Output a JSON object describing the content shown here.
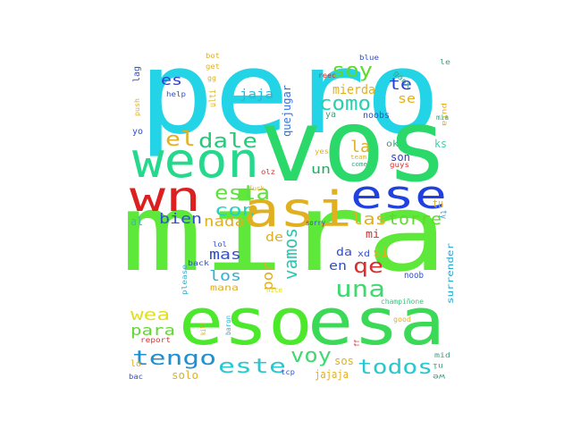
{
  "wordcloud": {
    "words": [
      {
        "text": "pero",
        "color": "#22d4e6"
      },
      {
        "text": "vos",
        "color": "#2bd96a"
      },
      {
        "text": "mira",
        "color": "#5ee83a"
      },
      {
        "text": "eso",
        "color": "#4ce82c"
      },
      {
        "text": "esa",
        "color": "#3ad956"
      },
      {
        "text": "weon",
        "color": "#24d98c"
      },
      {
        "text": "wn",
        "color": "#dc2020"
      },
      {
        "text": "asi",
        "color": "#e0b020"
      },
      {
        "text": "ese",
        "color": "#2040e0"
      },
      {
        "text": "esta",
        "color": "#60e040"
      },
      {
        "text": "con",
        "color": "#28d0c0"
      },
      {
        "text": "el",
        "color": "#e0b020"
      },
      {
        "text": "dale",
        "color": "#28c878"
      },
      {
        "text": "como",
        "color": "#28d0b0"
      },
      {
        "text": "soy",
        "color": "#60d830"
      },
      {
        "text": "mierda",
        "color": "#e0b020"
      },
      {
        "text": "quejugar",
        "color": "#3070e0"
      },
      {
        "text": "te",
        "color": "#2040d0"
      },
      {
        "text": "se",
        "color": "#e0b020"
      },
      {
        "text": "es",
        "color": "#3040d0"
      },
      {
        "text": "jaja",
        "color": "#28b8d8"
      },
      {
        "text": "la",
        "color": "#e0b020"
      },
      {
        "text": "bien",
        "color": "#3050d0"
      },
      {
        "text": "nada",
        "color": "#e0b020"
      },
      {
        "text": "las",
        "color": "#e0b020"
      },
      {
        "text": "torre",
        "color": "#60d830"
      },
      {
        "text": "una",
        "color": "#40d870"
      },
      {
        "text": "vamos",
        "color": "#28c8b0"
      },
      {
        "text": "qe",
        "color": "#d83030"
      },
      {
        "text": "mas",
        "color": "#3050d0"
      },
      {
        "text": "los",
        "color": "#30b0d0"
      },
      {
        "text": "por",
        "color": "#e0b020"
      },
      {
        "text": "de",
        "color": "#e0b020"
      },
      {
        "text": "en",
        "color": "#3050d0"
      },
      {
        "text": "si",
        "color": "#e0b020"
      },
      {
        "text": "un",
        "color": "#28a860"
      },
      {
        "text": "da",
        "color": "#3050d0"
      },
      {
        "text": "mi",
        "color": "#d83030"
      },
      {
        "text": "wea",
        "color": "#e0e020"
      },
      {
        "text": "para",
        "color": "#60d830"
      },
      {
        "text": "tengo",
        "color": "#2090d0"
      },
      {
        "text": "este",
        "color": "#28c8d0"
      },
      {
        "text": "voy",
        "color": "#40d870"
      },
      {
        "text": "todos",
        "color": "#28c8d0"
      },
      {
        "text": "sos",
        "color": "#e0b020"
      },
      {
        "text": "jajaja",
        "color": "#e0b020"
      },
      {
        "text": "solo",
        "color": "#e0b020"
      },
      {
        "text": "son",
        "color": "#3040d0"
      },
      {
        "text": "ks",
        "color": "#40d0b0"
      },
      {
        "text": "tu",
        "color": "#e0b020"
      },
      {
        "text": "ty",
        "color": "#28a8d0"
      },
      {
        "text": "al",
        "color": "#40b0d0"
      },
      {
        "text": "surrender",
        "color": "#28a8d0"
      },
      {
        "text": "please",
        "color": "#30b0d0"
      },
      {
        "text": "noob",
        "color": "#3050d0"
      },
      {
        "text": "champiñone",
        "color": "#40c080"
      },
      {
        "text": "good",
        "color": "#e0b020"
      },
      {
        "text": "report",
        "color": "#d83030"
      },
      {
        "text": "kill",
        "color": "#e0b020"
      },
      {
        "text": "nice",
        "color": "#e0e020"
      },
      {
        "text": "sorry",
        "color": "#3050d0"
      },
      {
        "text": "lol",
        "color": "#3050d0"
      },
      {
        "text": "back",
        "color": "#3050d0"
      },
      {
        "text": "mana",
        "color": "#e0b020"
      },
      {
        "text": "baron",
        "color": "#30b0d0"
      },
      {
        "text": "help",
        "color": "#3050d0"
      },
      {
        "text": "push",
        "color": "#e0b020"
      },
      {
        "text": "lag",
        "color": "#3050d0"
      },
      {
        "text": "yo",
        "color": "#3050d0"
      },
      {
        "text": "ulti",
        "color": "#e0b020"
      },
      {
        "text": "bot",
        "color": "#e0b020"
      },
      {
        "text": "get",
        "color": "#e0b020"
      },
      {
        "text": "gg",
        "color": "#e0b020"
      },
      {
        "text": "reec",
        "color": "#d83030"
      },
      {
        "text": "blue",
        "color": "#3050d0"
      },
      {
        "text": "le",
        "color": "#40a080"
      },
      {
        "text": "puta",
        "color": "#e0b020"
      },
      {
        "text": "gank",
        "color": "#40a080"
      },
      {
        "text": "mia",
        "color": "#40a080"
      },
      {
        "text": "noobs",
        "color": "#3050d0"
      },
      {
        "text": "ya",
        "color": "#40a080"
      },
      {
        "text": "ok",
        "color": "#40a080"
      },
      {
        "text": "yes",
        "color": "#e0b020"
      },
      {
        "text": "team",
        "color": "#e0b020"
      },
      {
        "text": "come",
        "color": "#40a080"
      },
      {
        "text": "guys",
        "color": "#d83030"
      },
      {
        "text": "olz",
        "color": "#d83030"
      },
      {
        "text": "fuck",
        "color": "#e0b020"
      },
      {
        "text": "xd",
        "color": "#3050d0"
      },
      {
        "text": "bac",
        "color": "#3050d0"
      },
      {
        "text": "lo",
        "color": "#e0b020"
      },
      {
        "text": "tcp",
        "color": "#3050d0"
      },
      {
        "text": "mid",
        "color": "#40a080"
      },
      {
        "text": "ni",
        "color": "#40a080"
      },
      {
        "text": "we",
        "color": "#40a080"
      },
      {
        "text": "ff",
        "color": "#d83030"
      }
    ]
  }
}
